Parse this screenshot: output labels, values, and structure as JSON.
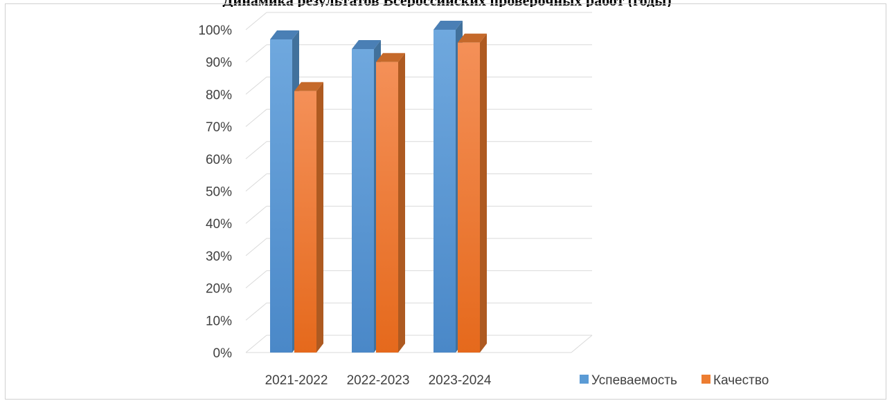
{
  "chart_data": {
    "type": "bar",
    "title": "Динамика результатов Всероссийских проверочных работ (годы)",
    "categories": [
      "2021-2022",
      "2022-2023",
      "2023-2024"
    ],
    "series": [
      {
        "name": "Успеваемость",
        "values": [
          97,
          94,
          100
        ]
      },
      {
        "name": "Качество",
        "values": [
          81,
          90,
          96
        ]
      }
    ],
    "ylim": [
      0,
      100
    ],
    "yticks": [
      "0%",
      "10%",
      "20%",
      "30%",
      "40%",
      "50%",
      "60%",
      "70%",
      "80%",
      "90%",
      "100%"
    ],
    "grid": true,
    "legend_position": "bottom-right",
    "colors": {
      "Успеваемость": {
        "front": "#5b9bd5",
        "top": "#4a7fb5",
        "side": "#41719c"
      },
      "Качество": {
        "front": "#ed7d31",
        "top": "#c5692a",
        "side": "#ae5a21"
      }
    }
  }
}
